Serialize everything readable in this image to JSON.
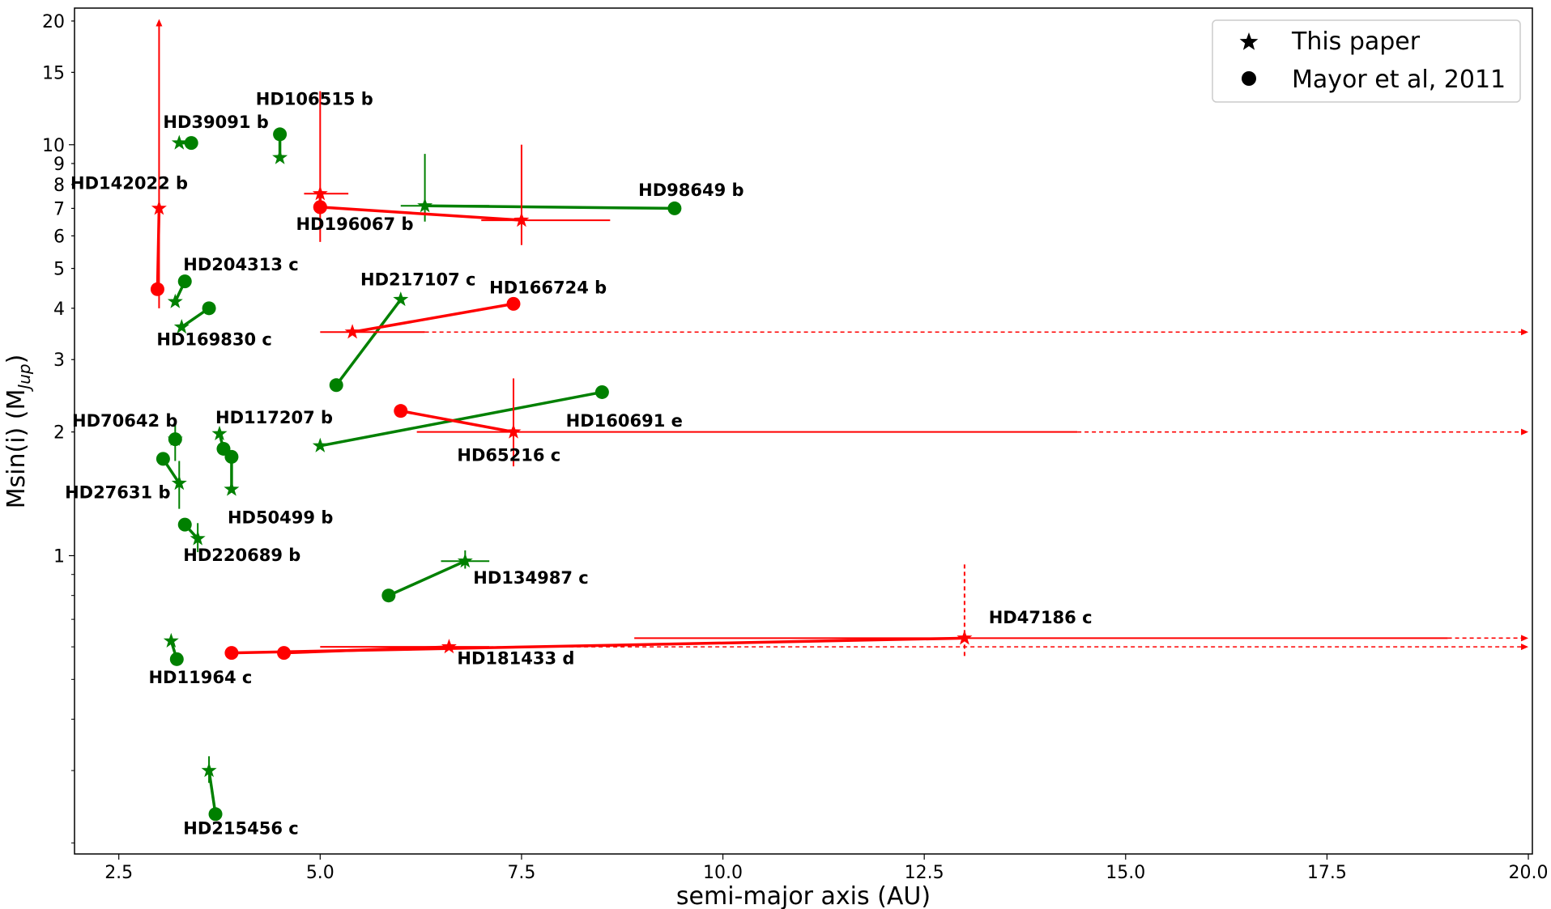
{
  "chart_data": {
    "type": "scatter",
    "xlabel": "semi-major axis (AU)",
    "ylabel": "Msin(i) (M",
    "ylabel_sub": "Jup",
    "xlim": [
      1.95,
      20.05
    ],
    "ylim": [
      0.188,
      21.5
    ],
    "yscale": "log",
    "x_ticks": [
      2.5,
      5.0,
      7.5,
      10.0,
      12.5,
      15.0,
      17.5,
      20.0
    ],
    "x_tick_labels": [
      "2.5",
      "5.0",
      "7.5",
      "10.0",
      "12.5",
      "15.0",
      "17.5",
      "20.0"
    ],
    "y_major_ticks": [
      1,
      10
    ],
    "y_tick_labels": [
      {
        "v": 1,
        "t": "1"
      },
      {
        "v": 2,
        "t": "2"
      },
      {
        "v": 3,
        "t": "3"
      },
      {
        "v": 4,
        "t": "4"
      },
      {
        "v": 5,
        "t": "5"
      },
      {
        "v": 6,
        "t": "6"
      },
      {
        "v": 7,
        "t": "7"
      },
      {
        "v": 8,
        "t": "8"
      },
      {
        "v": 9,
        "t": "9"
      },
      {
        "v": 10,
        "t": "10"
      },
      {
        "v": 15,
        "t": "15"
      },
      {
        "v": 20,
        "t": "20"
      }
    ],
    "y_minor_ticks": [
      0.2,
      0.3,
      0.4,
      0.5,
      0.6,
      0.7,
      0.8,
      0.9
    ],
    "legend": {
      "position": "top-right",
      "entries": [
        {
          "marker": "star",
          "label": "This paper"
        },
        {
          "marker": "circle",
          "label": "Mayor et al, 2011"
        }
      ]
    },
    "colors": {
      "green": "#008000",
      "red": "#ff0000"
    },
    "planets": [
      {
        "name": "HD39091 b",
        "color": "green",
        "star": [
          3.25,
          10.1
        ],
        "circle": [
          3.4,
          10.1
        ],
        "label": [
          3.05,
          11.0
        ]
      },
      {
        "name": "HD106515 b",
        "color": "green",
        "star": [
          4.5,
          9.3
        ],
        "circle": [
          4.5,
          10.6
        ],
        "label": [
          4.2,
          12.5
        ]
      },
      {
        "name": "HD142022 b",
        "color": "red",
        "star": [
          3.0,
          7.0
        ],
        "circle": [
          2.98,
          4.45
        ],
        "star_yerr": [
          4.0,
          19.5
        ],
        "star_yerr_arrow_up": true,
        "label": [
          1.9,
          7.8
        ]
      },
      {
        "name": "HD196067 b",
        "color": "red",
        "star": [
          5.0,
          7.6
        ],
        "circle": [
          5.0,
          7.05
        ],
        "star_yerr": [
          5.8,
          13.5
        ],
        "star_xerr": [
          4.8,
          5.35
        ],
        "label": [
          4.7,
          6.2
        ]
      },
      {
        "name": "HD98649 b",
        "color": "green",
        "star": [
          6.3,
          7.1
        ],
        "circle": [
          9.4,
          7.0
        ],
        "star_yerr": [
          6.5,
          9.5
        ],
        "star_xerr": [
          6.0,
          7.1
        ],
        "label": [
          8.95,
          7.5
        ]
      },
      {
        "name": "HD196067 b (2)",
        "color": "red",
        "star": [
          7.5,
          6.55
        ],
        "circle": [
          5.0,
          7.05
        ],
        "star_yerr": [
          5.7,
          10.0
        ],
        "star_xerr": [
          7.0,
          8.6
        ],
        "label": null
      },
      {
        "name": "HD204313 c",
        "color": "green",
        "star": [
          3.2,
          4.15
        ],
        "circle": [
          3.32,
          4.65
        ],
        "label": [
          3.3,
          4.95
        ]
      },
      {
        "name": "HD169830 c",
        "color": "green",
        "star": [
          3.28,
          3.6
        ],
        "circle": [
          3.62,
          4.0
        ],
        "label": [
          2.97,
          3.25
        ]
      },
      {
        "name": "HD217107 c",
        "color": "green",
        "star": [
          6.0,
          4.2
        ],
        "circle": [
          5.2,
          2.6
        ],
        "label": [
          5.5,
          4.55
        ]
      },
      {
        "name": "HD166724 b",
        "color": "red",
        "star": [
          5.4,
          3.5
        ],
        "circle": [
          7.4,
          4.1
        ],
        "star_xerr": [
          5.0,
          6.3
        ],
        "star_xerr_dashed": [
          6.3,
          20.0
        ],
        "star_xerr_arrow_right": true,
        "label": [
          7.1,
          4.35
        ]
      },
      {
        "name": "HD160691 e",
        "color": "green",
        "star": [
          5.0,
          1.85
        ],
        "circle": [
          8.5,
          2.5
        ],
        "label": [
          8.05,
          2.06
        ]
      },
      {
        "name": "HD65216 c",
        "color": "red",
        "star": [
          7.4,
          2.0
        ],
        "circle": [
          6.0,
          2.25
        ],
        "star_yerr": [
          1.65,
          2.7
        ],
        "star_xerr": [
          6.2,
          14.4
        ],
        "star_xerr_dashed": [
          14.4,
          20.0
        ],
        "star_xerr_arrow_right": true,
        "label": [
          6.7,
          1.7
        ]
      },
      {
        "name": "HD70642 b",
        "color": "green",
        "star": [
          3.2,
          1.92
        ],
        "circle": [
          3.2,
          1.92
        ],
        "star_yerr": [
          1.7,
          2.1
        ],
        "label": [
          1.92,
          2.06
        ]
      },
      {
        "name": "HD117207 b",
        "color": "green",
        "star": [
          3.75,
          1.98
        ],
        "circle": [
          3.8,
          1.82
        ],
        "label": [
          3.7,
          2.1
        ]
      },
      {
        "name": "HD27631 b",
        "color": "green",
        "star": [
          3.25,
          1.5
        ],
        "circle": [
          3.05,
          1.72
        ],
        "star_yerr": [
          1.3,
          1.7
        ],
        "label": [
          1.83,
          1.38
        ]
      },
      {
        "name": "HD50499 b",
        "color": "green",
        "star": [
          3.9,
          1.45
        ],
        "circle": [
          3.9,
          1.74
        ],
        "label": [
          3.85,
          1.2
        ]
      },
      {
        "name": "HD220689 b",
        "color": "green",
        "star": [
          3.48,
          1.1
        ],
        "circle": [
          3.32,
          1.19
        ],
        "star_yerr": [
          1.02,
          1.2
        ],
        "label": [
          3.3,
          0.97
        ]
      },
      {
        "name": "HD134987 c",
        "color": "green",
        "star": [
          6.8,
          0.97
        ],
        "circle": [
          5.85,
          0.8
        ],
        "star_yerr": [
          0.93,
          1.03
        ],
        "star_xerr": [
          6.5,
          7.1
        ],
        "label": [
          6.9,
          0.855
        ]
      },
      {
        "name": "HD47186 c",
        "color": "red",
        "star": [
          13.0,
          0.63
        ],
        "circle": [
          3.9,
          0.58
        ],
        "star_yerr": [
          0.57,
          0.96
        ],
        "star_yerr_dashed": true,
        "star_xerr": [
          8.9,
          19.0
        ],
        "star_xerr_dashed": [
          19.0,
          20.0
        ],
        "star_xerr_arrow_right": true,
        "label": [
          13.3,
          0.685
        ]
      },
      {
        "name": "HD181433 d",
        "color": "red",
        "star": [
          6.6,
          0.6
        ],
        "circle": [
          4.55,
          0.58
        ],
        "star_xerr": [
          5.0,
          7.1
        ],
        "star_xerr_dashed": [
          7.1,
          20.0
        ],
        "star_xerr_arrow_right": true,
        "label": [
          6.7,
          0.545
        ]
      },
      {
        "name": "HD11964 c",
        "color": "green",
        "star": [
          3.15,
          0.62
        ],
        "circle": [
          3.22,
          0.56
        ],
        "label": [
          2.87,
          0.49
        ]
      },
      {
        "name": "HD215456 c",
        "color": "green",
        "star": [
          3.62,
          0.3
        ],
        "circle": [
          3.7,
          0.235
        ],
        "star_yerr": [
          0.28,
          0.325
        ],
        "label": [
          3.3,
          0.21
        ]
      }
    ]
  }
}
